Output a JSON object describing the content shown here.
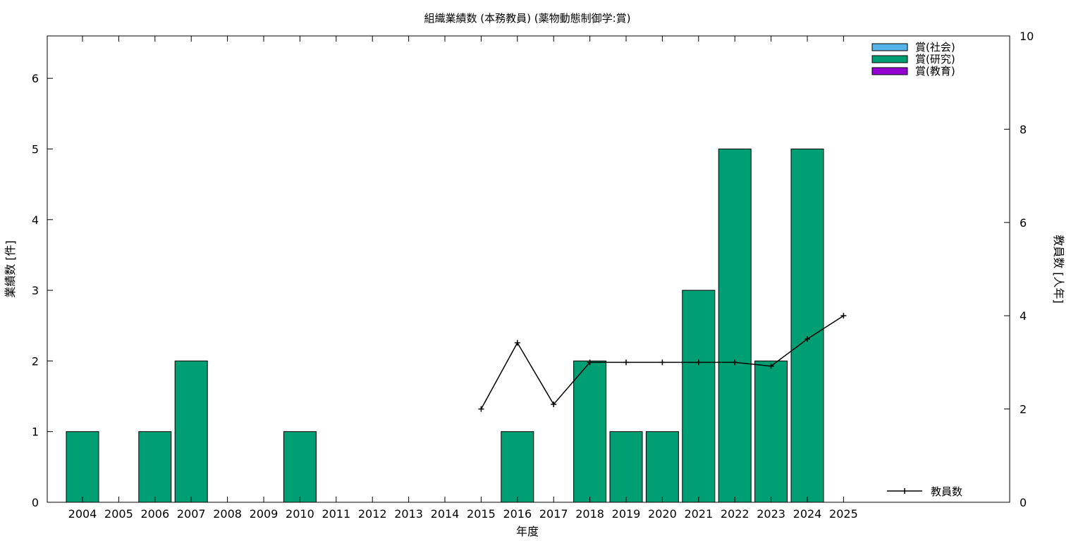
{
  "chart_data": {
    "type": "bar",
    "title": "組織業績数 (本務教員) (薬物動態制御学:賞)",
    "xlabel": "年度",
    "ylabel": "業績数 [件]",
    "y2label": "教員数 [人年]",
    "categories": [
      "2004",
      "2005",
      "2006",
      "2007",
      "2008",
      "2009",
      "2010",
      "2011",
      "2012",
      "2013",
      "2014",
      "2015",
      "2016",
      "2017",
      "2018",
      "2019",
      "2020",
      "2021",
      "2022",
      "2023",
      "2024",
      "2025"
    ],
    "ylim": [
      0,
      6.6
    ],
    "yticks": [
      0,
      1,
      2,
      3,
      4,
      5,
      6
    ],
    "y2lim": [
      0,
      10
    ],
    "y2ticks": [
      0,
      2,
      4,
      6,
      8,
      10
    ],
    "series": [
      {
        "name": "賞(社会)",
        "color": "#56b4e9",
        "values": [
          0,
          0,
          0,
          0,
          0,
          0,
          0,
          0,
          0,
          0,
          0,
          0,
          0,
          0,
          0,
          0,
          0,
          0,
          0,
          0,
          0,
          0
        ]
      },
      {
        "name": "賞(研究)",
        "color": "#009e73",
        "values": [
          1,
          0,
          1,
          2,
          0,
          0,
          1,
          0,
          0,
          0,
          0,
          0,
          1,
          0,
          2,
          1,
          1,
          3,
          5,
          2,
          5,
          0
        ]
      },
      {
        "name": "賞(教育)",
        "color": "#9400d3",
        "values": [
          0,
          0,
          0,
          0,
          0,
          0,
          0,
          0,
          0,
          0,
          0,
          0,
          0,
          0,
          0,
          0,
          0,
          0,
          0,
          0,
          0,
          0
        ]
      }
    ],
    "line_series": {
      "name": "教員数",
      "color": "#000000",
      "axis": "y2",
      "x": [
        "2015",
        "2016",
        "2017",
        "2018",
        "2019",
        "2020",
        "2021",
        "2022",
        "2023",
        "2024",
        "2025"
      ],
      "values": [
        2.0,
        3.42,
        2.1,
        3.0,
        3.0,
        3.0,
        3.0,
        3.0,
        2.92,
        3.5,
        4.0
      ]
    },
    "legend_position": "top-right",
    "line_legend_position": "bottom-right",
    "grid": false
  }
}
